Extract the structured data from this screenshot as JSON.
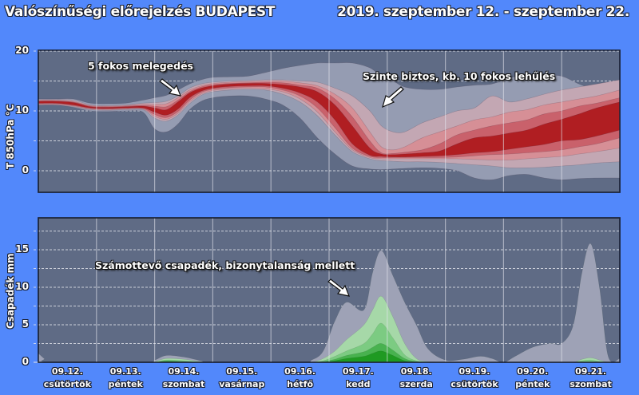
{
  "header": {
    "title": "Valószínűségi előrejelzés BUDAPEST",
    "date_range": "2019. szeptember 12. - szeptember 22."
  },
  "colors": {
    "background": "#5288fb",
    "plot_bg": "#5f6b85",
    "band_outer": "#959cb2",
    "band_pink1": "#c3a7b3",
    "band_pink2": "#d68f96",
    "band_red1": "#c9616b",
    "band_core": "#b01e22",
    "precip_grey": "#9ea2b6",
    "precip_green1": "#a6d8a8",
    "precip_green2": "#7ccb82",
    "precip_green3": "#48b24f",
    "precip_green4": "#1f9a22"
  },
  "x_axis": {
    "days": [
      {
        "date": "09.12.",
        "weekday": "csütörtök"
      },
      {
        "date": "09.13.",
        "weekday": "péntek"
      },
      {
        "date": "09.14.",
        "weekday": "szombat"
      },
      {
        "date": "09.15.",
        "weekday": "vasárnap"
      },
      {
        "date": "09.16.",
        "weekday": "hétfő"
      },
      {
        "date": "09.17.",
        "weekday": "kedd"
      },
      {
        "date": "09.18.",
        "weekday": "szerda"
      },
      {
        "date": "09.19.",
        "weekday": "csütörtök"
      },
      {
        "date": "09.20.",
        "weekday": "péntek"
      },
      {
        "date": "09.21.",
        "weekday": "szombat"
      }
    ]
  },
  "annotations": {
    "warming": "5 fokos melegedés",
    "cooling": "Szinte biztos, kb. 10 fokos lehűlés",
    "precip": "Számottevő csapadék, bizonytalanság mellett"
  },
  "chart_data": [
    {
      "type": "area",
      "title": "T 850hPa ensemble plume",
      "ylabel": "T 850hPa °C",
      "yticks": [
        0,
        10,
        20
      ],
      "ylim": [
        -3.6,
        20.2
      ],
      "grid": true,
      "x_days": [
        0,
        0.3,
        0.6,
        0.9,
        1.2,
        1.5,
        1.8,
        2.0,
        2.2,
        2.4,
        2.6,
        2.8,
        3.0,
        3.3,
        3.6,
        3.9,
        4.2,
        4.5,
        4.8,
        5.1,
        5.4,
        5.7,
        5.9,
        6.1,
        6.3,
        6.6,
        6.9,
        7.2,
        7.5,
        7.8,
        8.1,
        8.4,
        8.7,
        9.0,
        9.3,
        9.6,
        10.0
      ],
      "series": [
        {
          "name": "outer_hi",
          "values": [
            12.0,
            12.0,
            12.0,
            11.3,
            11.2,
            11.3,
            11.8,
            12.2,
            12.6,
            13.5,
            14.5,
            15.2,
            15.6,
            15.7,
            15.8,
            16.4,
            17.1,
            17.6,
            18.0,
            18.0,
            18.0,
            17.2,
            15.8,
            15.0,
            14.0,
            13.6,
            13.6,
            14.0,
            14.3,
            14.5,
            15.5,
            16.0,
            16.0,
            15.8,
            14.5,
            13.5,
            13.2
          ]
        },
        {
          "name": "pink1_hi",
          "values": [
            11.9,
            11.9,
            11.8,
            11.0,
            10.9,
            11.0,
            11.3,
            11.4,
            11.6,
            12.5,
            13.8,
            14.5,
            14.8,
            15.0,
            15.1,
            15.2,
            15.2,
            15.0,
            14.8,
            13.8,
            12.5,
            10.0,
            7.5,
            6.5,
            6.5,
            8.0,
            9.0,
            10.0,
            10.5,
            12.5,
            11.5,
            12.0,
            12.8,
            13.5,
            14.0,
            14.5,
            15.2
          ]
        },
        {
          "name": "pink2_hi",
          "values": [
            11.8,
            11.8,
            11.6,
            10.9,
            10.8,
            10.9,
            11.1,
            11.1,
            11.2,
            12.2,
            13.5,
            14.2,
            14.6,
            14.8,
            14.9,
            15.0,
            15.0,
            14.7,
            14.2,
            12.8,
            10.5,
            6.5,
            4.0,
            3.5,
            4.0,
            5.5,
            6.5,
            7.5,
            8.5,
            9.0,
            9.8,
            10.2,
            11.0,
            11.5,
            12.0,
            12.5,
            13.5
          ]
        },
        {
          "name": "red1_hi",
          "values": [
            11.7,
            11.7,
            11.5,
            10.8,
            10.7,
            10.8,
            10.9,
            10.8,
            10.7,
            11.8,
            13.2,
            14.0,
            14.4,
            14.6,
            14.7,
            14.8,
            14.7,
            14.3,
            13.8,
            12.0,
            9.0,
            5.0,
            3.0,
            2.9,
            3.1,
            3.5,
            4.5,
            6.0,
            6.8,
            7.5,
            8.0,
            8.5,
            9.5,
            10.0,
            10.8,
            11.3,
            12.2
          ]
        },
        {
          "name": "core_hi",
          "values": [
            11.6,
            11.6,
            11.4,
            10.7,
            10.6,
            10.7,
            10.8,
            10.5,
            10.2,
            11.5,
            13.0,
            13.8,
            14.2,
            14.5,
            14.6,
            14.6,
            14.4,
            14.0,
            13.2,
            11.0,
            7.5,
            3.8,
            2.8,
            2.7,
            2.8,
            3.0,
            3.3,
            4.5,
            5.5,
            5.8,
            6.3,
            6.8,
            7.8,
            8.6,
            9.5,
            10.5,
            11.5
          ]
        },
        {
          "name": "core_lo",
          "values": [
            11.3,
            11.3,
            11.0,
            10.5,
            10.4,
            10.5,
            10.5,
            9.8,
            9.3,
            10.3,
            12.2,
            13.3,
            13.8,
            14.1,
            14.2,
            14.2,
            13.8,
            13.0,
            11.5,
            8.5,
            4.5,
            2.6,
            2.4,
            2.3,
            2.3,
            2.4,
            2.5,
            2.7,
            3.0,
            3.2,
            3.6,
            4.0,
            4.4,
            5.0,
            5.2,
            5.8,
            6.8
          ]
        },
        {
          "name": "red1_lo",
          "values": [
            11.2,
            11.2,
            10.9,
            10.4,
            10.3,
            10.4,
            10.4,
            9.4,
            8.9,
            9.9,
            11.8,
            13.1,
            13.6,
            13.9,
            14.0,
            14.0,
            13.5,
            12.5,
            10.5,
            7.2,
            3.8,
            2.4,
            2.2,
            2.2,
            2.2,
            2.2,
            2.2,
            2.3,
            2.5,
            2.7,
            2.8,
            3.0,
            3.2,
            3.5,
            4.0,
            4.5,
            5.5
          ]
        },
        {
          "name": "pink2_lo",
          "values": [
            11.1,
            11.1,
            10.8,
            10.3,
            10.2,
            10.3,
            10.3,
            9.1,
            8.6,
            9.6,
            11.5,
            12.8,
            13.4,
            13.7,
            13.8,
            13.7,
            13.2,
            12.0,
            9.8,
            6.5,
            3.5,
            2.2,
            2.0,
            2.0,
            2.0,
            2.0,
            2.0,
            2.0,
            1.9,
            1.8,
            1.8,
            2.0,
            2.2,
            2.4,
            2.8,
            3.2,
            3.8
          ]
        },
        {
          "name": "pink1_lo",
          "values": [
            11.0,
            11.0,
            10.7,
            10.2,
            10.1,
            10.2,
            10.2,
            8.8,
            8.3,
            9.3,
            11.2,
            12.6,
            13.2,
            13.5,
            13.6,
            13.5,
            12.8,
            11.5,
            9.2,
            6.0,
            3.2,
            2.0,
            1.7,
            1.6,
            1.5,
            1.5,
            1.4,
            1.2,
            1.0,
            0.8,
            0.5,
            0.5,
            0.6,
            0.8,
            1.0,
            1.3,
            1.5
          ]
        },
        {
          "name": "outer_lo",
          "values": [
            11.0,
            11.0,
            10.6,
            10.0,
            9.9,
            10.0,
            9.8,
            7.0,
            6.5,
            7.8,
            10.2,
            11.6,
            12.2,
            12.5,
            12.5,
            12.0,
            11.0,
            8.8,
            5.5,
            2.8,
            0.8,
            0.3,
            0.2,
            0.3,
            0.4,
            0.5,
            0.4,
            0.0,
            -1.2,
            -1.5,
            -0.8,
            -0.6,
            -1.2,
            -1.5,
            -1.3,
            -1.2,
            -1.2
          ]
        }
      ]
    },
    {
      "type": "area",
      "title": "Precipitation ensemble",
      "ylabel": "Csapadék mm",
      "yticks": [
        0,
        5,
        10,
        15
      ],
      "ylim": [
        0,
        19.2
      ],
      "grid": true,
      "x_days": [
        0,
        0.1,
        0.2,
        1.8,
        2.0,
        2.2,
        2.5,
        2.8,
        3.0,
        4.5,
        4.7,
        4.9,
        5.1,
        5.3,
        5.6,
        5.75,
        5.9,
        6.1,
        6.3,
        6.5,
        6.7,
        7.0,
        7.3,
        7.6,
        7.8,
        8.0,
        8.2,
        8.5,
        8.8,
        9.0,
        9.2,
        9.35,
        9.5,
        9.65,
        9.8,
        10.0
      ],
      "series": [
        {
          "name": "grey_max",
          "values": [
            1.2,
            0.5,
            0.0,
            0.0,
            0.3,
            0.9,
            0.7,
            0.2,
            0.0,
            0.0,
            0.3,
            1.5,
            5.5,
            8.0,
            7.0,
            12.0,
            14.9,
            11.5,
            8.0,
            5.0,
            1.8,
            0.3,
            0.4,
            0.8,
            0.5,
            0.0,
            0.8,
            2.0,
            2.5,
            2.5,
            5.0,
            12.0,
            15.8,
            10.0,
            0.8,
            0.5
          ]
        },
        {
          "name": "green1",
          "values": [
            0,
            0,
            0,
            0,
            0.1,
            0.5,
            0.4,
            0.1,
            0,
            0,
            0,
            0.5,
            1.5,
            3.0,
            5.0,
            7.0,
            8.8,
            6.0,
            2.5,
            0.5,
            0.1,
            0,
            0,
            0,
            0,
            0,
            0,
            0,
            0,
            0,
            0,
            0.4,
            0.6,
            0.3,
            0,
            0
          ]
        },
        {
          "name": "green2",
          "values": [
            0,
            0,
            0,
            0,
            0,
            0.3,
            0.2,
            0,
            0,
            0,
            0,
            0.2,
            0.8,
            1.5,
            2.5,
            3.8,
            5.2,
            3.2,
            1.0,
            0.2,
            0,
            0,
            0,
            0,
            0,
            0,
            0,
            0,
            0,
            0,
            0,
            0.2,
            0.3,
            0.1,
            0,
            0
          ]
        },
        {
          "name": "green3",
          "values": [
            0,
            0,
            0,
            0,
            0,
            0.2,
            0.1,
            0,
            0,
            0,
            0,
            0.1,
            0.4,
            0.9,
            1.4,
            2.0,
            2.5,
            1.6,
            0.5,
            0.1,
            0,
            0,
            0,
            0,
            0,
            0,
            0,
            0,
            0,
            0,
            0,
            0,
            0,
            0,
            0,
            0
          ]
        },
        {
          "name": "green4",
          "values": [
            0,
            0,
            0,
            0,
            0,
            0.1,
            0.05,
            0,
            0,
            0,
            0,
            0,
            0.2,
            0.5,
            0.8,
            1.2,
            1.5,
            0.9,
            0.2,
            0,
            0,
            0,
            0,
            0,
            0,
            0,
            0,
            0,
            0,
            0,
            0,
            0,
            0,
            0,
            0,
            0
          ]
        }
      ]
    }
  ]
}
